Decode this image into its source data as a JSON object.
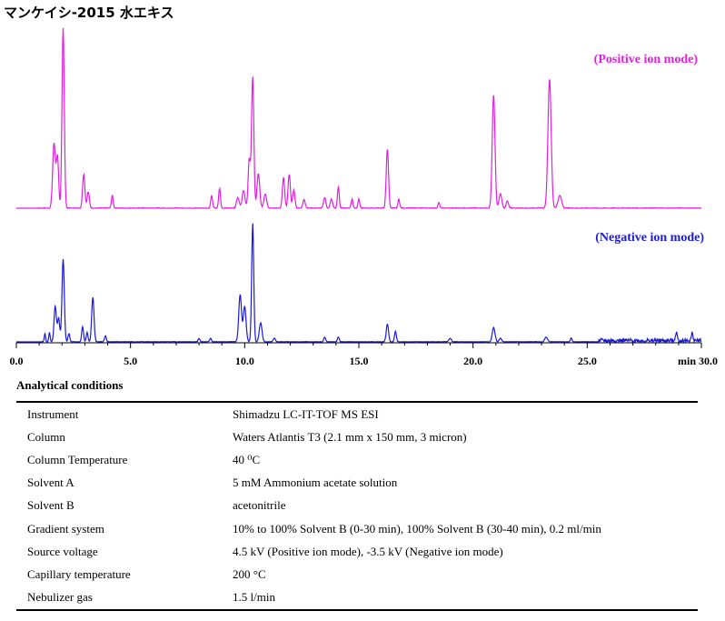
{
  "title": "マンケイシ-2015 水エキス",
  "chart_data": [
    {
      "type": "line",
      "series_label": "(Positive ion mode)",
      "color": "#e020e0",
      "xlim": [
        0,
        30
      ],
      "peaks": [
        {
          "rt": 1.65,
          "h": 0.36,
          "w": 0.06
        },
        {
          "rt": 1.8,
          "h": 0.28,
          "w": 0.05
        },
        {
          "rt": 2.05,
          "h": 1.0,
          "w": 0.05
        },
        {
          "rt": 2.95,
          "h": 0.19,
          "w": 0.05
        },
        {
          "rt": 3.15,
          "h": 0.09,
          "w": 0.05
        },
        {
          "rt": 4.2,
          "h": 0.07,
          "w": 0.04
        },
        {
          "rt": 8.55,
          "h": 0.07,
          "w": 0.04
        },
        {
          "rt": 8.9,
          "h": 0.11,
          "w": 0.04
        },
        {
          "rt": 9.7,
          "h": 0.06,
          "w": 0.06
        },
        {
          "rt": 9.95,
          "h": 0.1,
          "w": 0.06
        },
        {
          "rt": 10.2,
          "h": 0.27,
          "w": 0.05
        },
        {
          "rt": 10.35,
          "h": 0.73,
          "w": 0.05
        },
        {
          "rt": 10.6,
          "h": 0.19,
          "w": 0.06
        },
        {
          "rt": 10.9,
          "h": 0.08,
          "w": 0.06
        },
        {
          "rt": 11.7,
          "h": 0.17,
          "w": 0.05
        },
        {
          "rt": 11.95,
          "h": 0.19,
          "w": 0.05
        },
        {
          "rt": 12.15,
          "h": 0.1,
          "w": 0.05
        },
        {
          "rt": 12.6,
          "h": 0.05,
          "w": 0.05
        },
        {
          "rt": 13.5,
          "h": 0.06,
          "w": 0.05
        },
        {
          "rt": 13.8,
          "h": 0.05,
          "w": 0.05
        },
        {
          "rt": 14.1,
          "h": 0.12,
          "w": 0.04
        },
        {
          "rt": 14.7,
          "h": 0.05,
          "w": 0.04
        },
        {
          "rt": 15.0,
          "h": 0.05,
          "w": 0.04
        },
        {
          "rt": 16.25,
          "h": 0.33,
          "w": 0.05
        },
        {
          "rt": 16.75,
          "h": 0.05,
          "w": 0.04
        },
        {
          "rt": 18.5,
          "h": 0.03,
          "w": 0.04
        },
        {
          "rt": 20.9,
          "h": 0.63,
          "w": 0.06
        },
        {
          "rt": 21.2,
          "h": 0.08,
          "w": 0.06
        },
        {
          "rt": 21.5,
          "h": 0.04,
          "w": 0.05
        },
        {
          "rt": 23.35,
          "h": 0.72,
          "w": 0.07
        },
        {
          "rt": 23.8,
          "h": 0.07,
          "w": 0.08
        }
      ]
    },
    {
      "type": "line",
      "series_label": "(Negative ion mode)",
      "color": "#1a1ae0",
      "xlim": [
        0,
        30
      ],
      "peaks": [
        {
          "rt": 1.25,
          "h": 0.07,
          "w": 0.03
        },
        {
          "rt": 1.45,
          "h": 0.08,
          "w": 0.03
        },
        {
          "rt": 1.7,
          "h": 0.3,
          "w": 0.05
        },
        {
          "rt": 1.85,
          "h": 0.2,
          "w": 0.05
        },
        {
          "rt": 2.05,
          "h": 0.7,
          "w": 0.05
        },
        {
          "rt": 2.3,
          "h": 0.07,
          "w": 0.04
        },
        {
          "rt": 2.9,
          "h": 0.13,
          "w": 0.04
        },
        {
          "rt": 3.1,
          "h": 0.08,
          "w": 0.04
        },
        {
          "rt": 3.35,
          "h": 0.38,
          "w": 0.05
        },
        {
          "rt": 3.9,
          "h": 0.05,
          "w": 0.04
        },
        {
          "rt": 8.0,
          "h": 0.03,
          "w": 0.04
        },
        {
          "rt": 8.5,
          "h": 0.03,
          "w": 0.04
        },
        {
          "rt": 9.8,
          "h": 0.4,
          "w": 0.06
        },
        {
          "rt": 10.0,
          "h": 0.3,
          "w": 0.06
        },
        {
          "rt": 10.35,
          "h": 1.0,
          "w": 0.045
        },
        {
          "rt": 10.7,
          "h": 0.16,
          "w": 0.06
        },
        {
          "rt": 11.3,
          "h": 0.03,
          "w": 0.05
        },
        {
          "rt": 13.5,
          "h": 0.04,
          "w": 0.04
        },
        {
          "rt": 14.1,
          "h": 0.04,
          "w": 0.04
        },
        {
          "rt": 16.25,
          "h": 0.15,
          "w": 0.05
        },
        {
          "rt": 16.6,
          "h": 0.09,
          "w": 0.04
        },
        {
          "rt": 19.0,
          "h": 0.03,
          "w": 0.05
        },
        {
          "rt": 20.9,
          "h": 0.12,
          "w": 0.06
        },
        {
          "rt": 21.2,
          "h": 0.03,
          "w": 0.05
        },
        {
          "rt": 23.2,
          "h": 0.04,
          "w": 0.06
        },
        {
          "rt": 24.3,
          "h": 0.03,
          "w": 0.04
        },
        {
          "rt": 28.9,
          "h": 0.07,
          "w": 0.04
        },
        {
          "rt": 29.6,
          "h": 0.06,
          "w": 0.04
        }
      ]
    }
  ],
  "x_axis": {
    "tick_labels": [
      "0.0",
      "5.0",
      "10.0",
      "15.0",
      "20.0",
      "25.0",
      "min 30.0"
    ],
    "tick_values": [
      0,
      5,
      10,
      15,
      20,
      25,
      30
    ]
  },
  "conditions": {
    "title": "Analytical conditions",
    "rows": [
      {
        "label": "Instrument",
        "value": "Shimadzu LC-IT-TOF MS ESI"
      },
      {
        "label": "Column",
        "value": "Waters Atlantis T3 (2.1 mm x 150 mm, 3 micron)"
      },
      {
        "label": "Column Temperature",
        "value": "40 ⁰C"
      },
      {
        "label": "Solvent A",
        "value": "5 mM Ammonium acetate solution"
      },
      {
        "label": "Solvent B",
        "value": "acetonitrile"
      },
      {
        "label": "Gradient system",
        "value": "10% to 100% Solvent B (0-30 min), 100% Solvent B (30-40 min), 0.2 ml/min"
      },
      {
        "label": "Source voltage",
        "value": "4.5 kV (Positive ion mode), -3.5 kV (Negative ion mode)"
      },
      {
        "label": "Capillary temperature",
        "value": "200 °C"
      },
      {
        "label": "Nebulizer gas",
        "value": "1.5 l/min"
      }
    ]
  }
}
